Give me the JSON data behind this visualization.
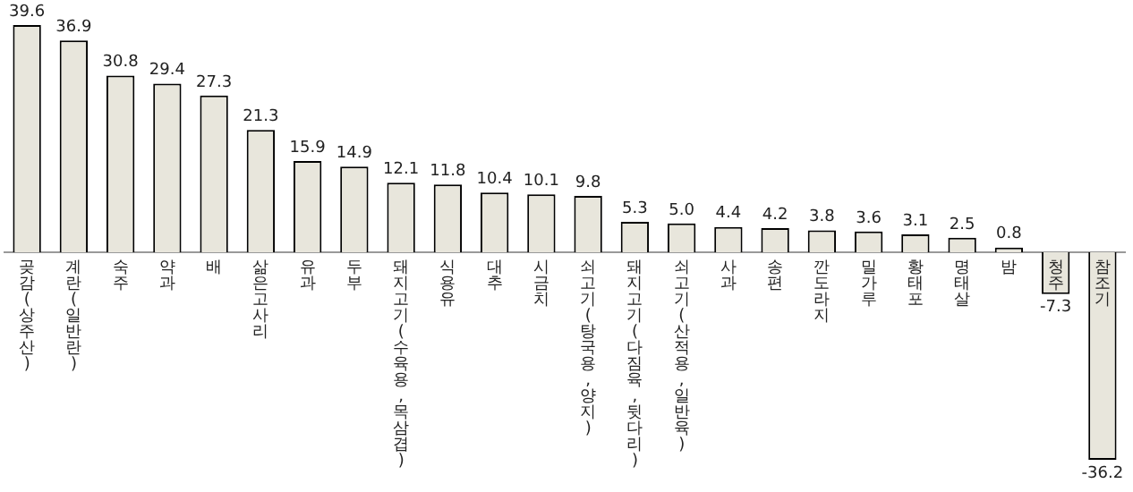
{
  "chart_data": {
    "type": "bar",
    "categories": [
      "곶감(상주산)",
      "계란(일반란)",
      "숙주",
      "약과",
      "배",
      "삶은고사리",
      "유과",
      "두부",
      "돼지고기(수육용,목삼겹)",
      "식용유",
      "대추",
      "시금치",
      "쇠고기(탕국용,양지)",
      "돼지고기(다짐육,뒷다리)",
      "쇠고기(산적용,일반육)",
      "사과",
      "송편",
      "깐도라지",
      "밀가루",
      "황태포",
      "명태살",
      "밤",
      "청주",
      "참조기"
    ],
    "values": [
      39.6,
      36.9,
      30.8,
      29.4,
      27.3,
      21.3,
      15.9,
      14.9,
      12.1,
      11.8,
      10.4,
      10.1,
      9.8,
      5.3,
      5.0,
      4.4,
      4.2,
      3.8,
      3.6,
      3.1,
      2.5,
      0.8,
      -7.3,
      -36.2
    ],
    "color": "#e8e6dc",
    "value_labels": [
      "39.6",
      "36.9",
      "30.8",
      "29.4",
      "27.3",
      "21.3",
      "15.9",
      "14.9",
      "12.1",
      "11.8",
      "10.4",
      "10.1",
      "9.8",
      "5.3",
      "5.0",
      "4.4",
      "4.2",
      "3.8",
      "3.6",
      "3.1",
      "2.5",
      "0.8",
      "-7.3",
      "-36.2"
    ]
  }
}
